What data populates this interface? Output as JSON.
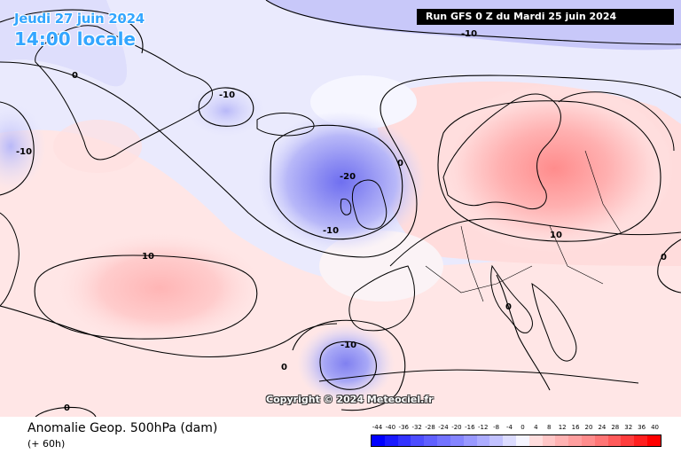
{
  "header": {
    "date": "Jeudi 27 juin 2024",
    "time": "14:00 locale",
    "run": "Run GFS 0 Z du Mardi 25 juin 2024"
  },
  "copyright": "Copyright © 2024 Meteociel.fr",
  "footer": {
    "title": "Anomalie Geop. 500hPa (dam)",
    "subtitle": "(+ 60h)"
  },
  "contour_labels": [
    {
      "text": "-10",
      "where": "top-center"
    },
    {
      "text": "0",
      "where": "top-left"
    },
    {
      "text": "-10",
      "where": "iceland-low"
    },
    {
      "text": "-10",
      "where": "far-left"
    },
    {
      "text": "-20",
      "where": "atlantic-low-core"
    },
    {
      "text": "-10",
      "where": "atlantic-low-south"
    },
    {
      "text": "0",
      "where": "atlantic-ridge"
    },
    {
      "text": "10",
      "where": "scandinavia-high"
    },
    {
      "text": "10",
      "where": "mid-atlantic-high"
    },
    {
      "text": "0",
      "where": "east-edge"
    },
    {
      "text": "0",
      "where": "balkans"
    },
    {
      "text": "-10",
      "where": "iberia-low"
    },
    {
      "text": "0",
      "where": "iberia-west"
    },
    {
      "text": "0",
      "where": "bottom-left"
    }
  ],
  "scale": {
    "labels": [
      "-44",
      "-40",
      "-36",
      "-32",
      "-28",
      "-24",
      "-20",
      "-16",
      "-12",
      "-8",
      "-4",
      "0",
      "4",
      "8",
      "12",
      "16",
      "20",
      "24",
      "28",
      "32",
      "36",
      "40"
    ],
    "colors": [
      "#0000ff",
      "#1a1aff",
      "#3333ff",
      "#4d4dff",
      "#6060ff",
      "#7373ff",
      "#8585ff",
      "#9999ff",
      "#adadff",
      "#c2c2ff",
      "#dcdcff",
      "#f5f5ff",
      "#ffdede",
      "#ffc7c7",
      "#ffb3b3",
      "#ff9f9f",
      "#ff8c8c",
      "#ff7575",
      "#ff5a5a",
      "#ff3d3d",
      "#ff1f1f",
      "#ff0000"
    ]
  },
  "colors": {
    "title_blue": "#33a6ff",
    "neg_field": "#8888f0",
    "pos_field": "#ff8f8f"
  }
}
